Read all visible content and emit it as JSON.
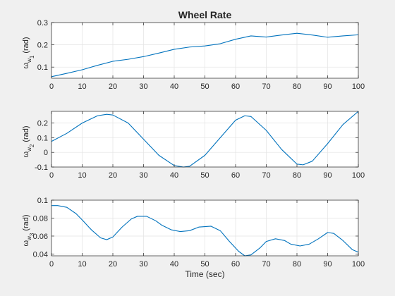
{
  "chart_data": [
    {
      "type": "line",
      "title": "Wheel Rate",
      "xlabel": "",
      "ylabel": {
        "symbol": "ω",
        "sub1": "w",
        "sub2": "1",
        "unit": "(rad)"
      },
      "xlim": [
        0,
        100
      ],
      "ylim": [
        0.05,
        0.3
      ],
      "xticks": [
        0,
        10,
        20,
        30,
        40,
        50,
        60,
        70,
        80,
        90,
        100
      ],
      "yticks": [
        0.1,
        0.2,
        0.3
      ],
      "ytick_labels": [
        "0.1",
        "0.2",
        "0.3"
      ],
      "grid": true,
      "color": "#0072BD",
      "x": [
        0,
        5,
        10,
        15,
        20,
        25,
        30,
        35,
        40,
        45,
        50,
        55,
        60,
        65,
        70,
        75,
        80,
        85,
        90,
        95,
        100
      ],
      "y": [
        0.057,
        0.072,
        0.088,
        0.108,
        0.126,
        0.135,
        0.147,
        0.163,
        0.18,
        0.19,
        0.195,
        0.205,
        0.225,
        0.24,
        0.235,
        0.244,
        0.252,
        0.244,
        0.234,
        0.24,
        0.245
      ]
    },
    {
      "type": "line",
      "title": "",
      "xlabel": "",
      "ylabel": {
        "symbol": "ω",
        "sub1": "w",
        "sub2": "2",
        "unit": "(rad)"
      },
      "xlim": [
        0,
        100
      ],
      "ylim": [
        -0.1,
        0.28
      ],
      "xticks": [
        0,
        10,
        20,
        30,
        40,
        50,
        60,
        70,
        80,
        90,
        100
      ],
      "yticks": [
        -0.1,
        0,
        0.1,
        0.2
      ],
      "ytick_labels": [
        "-0.1",
        "0",
        "0.1",
        "0.2"
      ],
      "grid": true,
      "color": "#0072BD",
      "x": [
        0,
        5,
        10,
        15,
        18,
        20,
        25,
        30,
        35,
        40,
        43,
        45,
        50,
        55,
        60,
        63,
        65,
        70,
        75,
        80,
        82,
        85,
        90,
        95,
        100
      ],
      "y": [
        0.075,
        0.13,
        0.2,
        0.25,
        0.26,
        0.255,
        0.2,
        0.09,
        -0.02,
        -0.09,
        -0.1,
        -0.095,
        -0.02,
        0.1,
        0.22,
        0.25,
        0.245,
        0.15,
        0.02,
        -0.08,
        -0.085,
        -0.06,
        0.06,
        0.19,
        0.28
      ]
    },
    {
      "type": "line",
      "title": "",
      "xlabel": "Time (sec)",
      "ylabel": {
        "symbol": "ω",
        "sub1": "w",
        "sub2": "3",
        "unit": "(rad)"
      },
      "xlim": [
        0,
        100
      ],
      "ylim": [
        0.038,
        0.1
      ],
      "xticks": [
        0,
        10,
        20,
        30,
        40,
        50,
        60,
        70,
        80,
        90,
        100
      ],
      "yticks": [
        0.04,
        0.06,
        0.08,
        0.1
      ],
      "ytick_labels": [
        "0.04",
        "0.06",
        "0.08",
        "0.1"
      ],
      "grid": true,
      "color": "#0072BD",
      "x": [
        0,
        2,
        5,
        8,
        10,
        13,
        16,
        18,
        20,
        23,
        26,
        28,
        31,
        34,
        36,
        39,
        42,
        45,
        48,
        52,
        55,
        58,
        61,
        63,
        65,
        68,
        70,
        73,
        76,
        78,
        81,
        84,
        87,
        90,
        92,
        95,
        98,
        100
      ],
      "y": [
        0.094,
        0.094,
        0.092,
        0.085,
        0.078,
        0.067,
        0.058,
        0.056,
        0.059,
        0.07,
        0.079,
        0.082,
        0.082,
        0.077,
        0.072,
        0.067,
        0.065,
        0.066,
        0.07,
        0.071,
        0.066,
        0.054,
        0.043,
        0.038,
        0.039,
        0.047,
        0.054,
        0.057,
        0.055,
        0.051,
        0.049,
        0.051,
        0.057,
        0.064,
        0.063,
        0.055,
        0.045,
        0.042
      ]
    }
  ]
}
